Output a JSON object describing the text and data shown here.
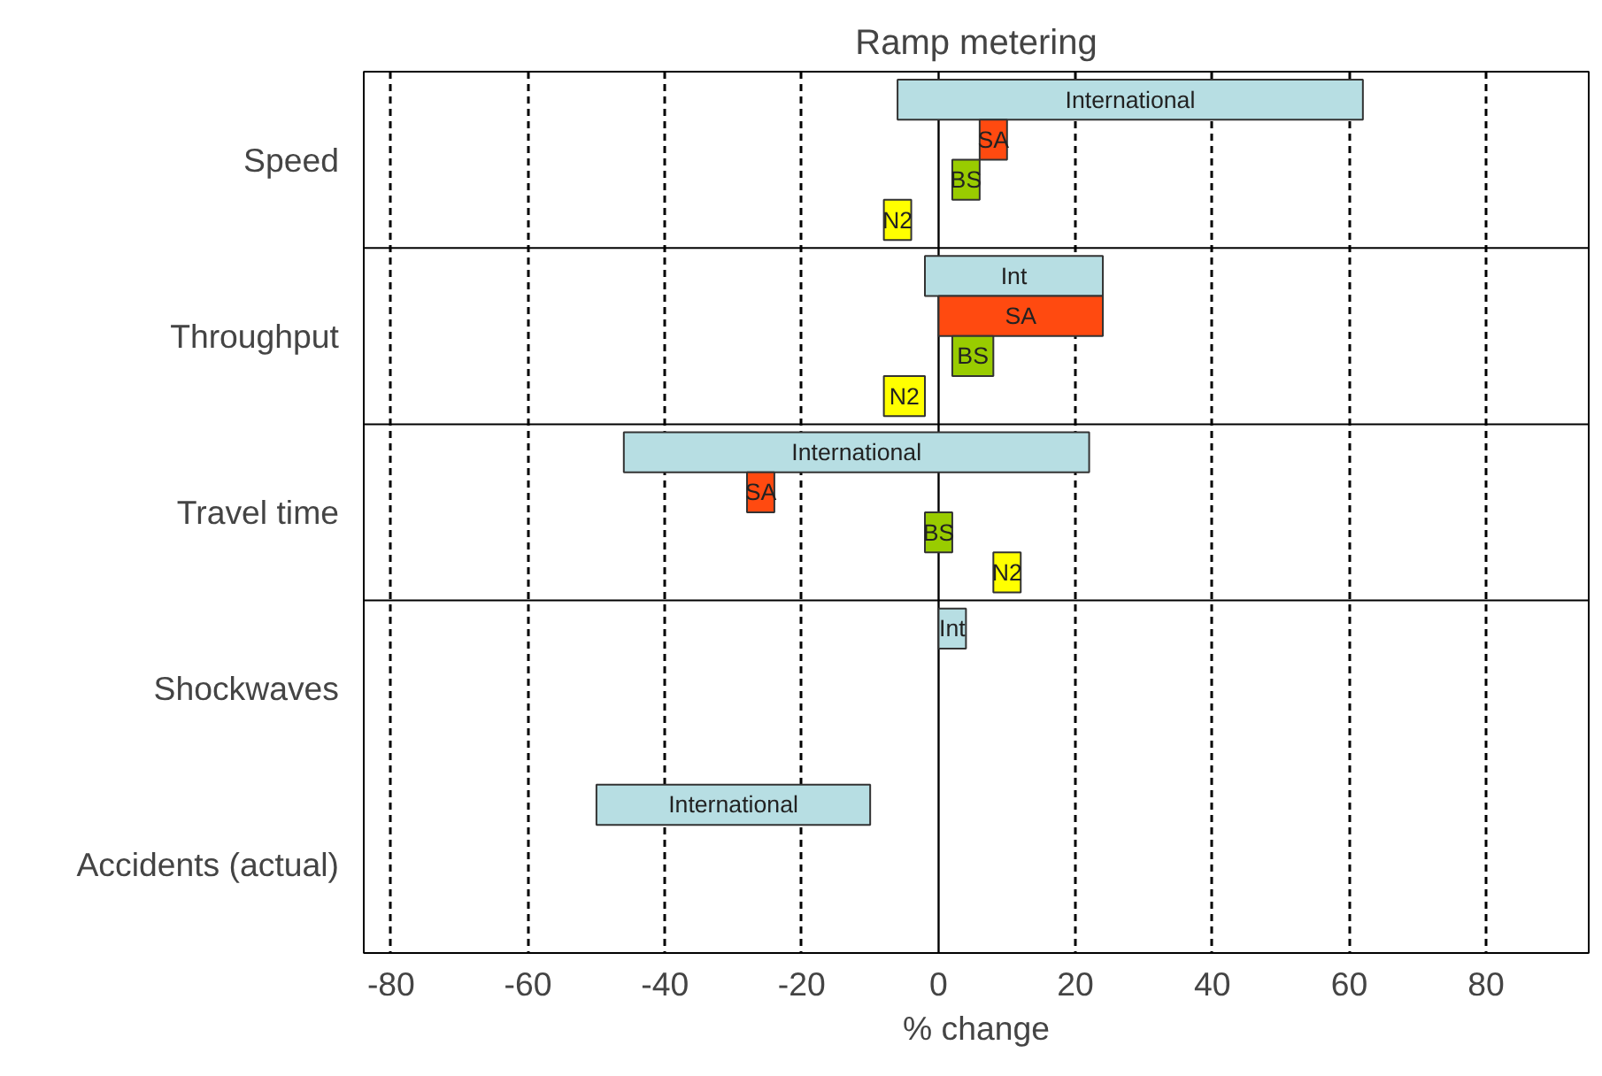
{
  "chart_data": {
    "type": "bar",
    "orientation": "horizontal",
    "title": "Ramp metering",
    "xlabel": "% change",
    "categories": [
      "Speed",
      "Throughput",
      "Travel time",
      "Shockwaves",
      "Accidents (actual)"
    ],
    "series": [
      {
        "color": "#b7dee3",
        "base": [
          -6,
          -2,
          -46,
          0,
          -50
        ],
        "values": [
          68,
          26,
          68,
          4,
          40
        ],
        "value_labels": [
          "International",
          "Int",
          "International",
          "Int",
          "International"
        ]
      },
      {
        "color": "#ff4a10",
        "base": [
          6,
          0,
          -28,
          null,
          null
        ],
        "values": [
          4,
          24,
          4,
          null,
          null
        ],
        "value_labels": [
          "SA",
          "SA",
          "SA",
          null,
          null
        ]
      },
      {
        "color": "#99cc00",
        "base": [
          2,
          2,
          -2,
          null,
          null
        ],
        "values": [
          4,
          6,
          4,
          null,
          null
        ],
        "value_labels": [
          "BS",
          "BS",
          "BS",
          null,
          null
        ]
      },
      {
        "color": "#ffff00",
        "base": [
          -8,
          -8,
          8,
          null,
          null
        ],
        "values": [
          4,
          6,
          4,
          null,
          null
        ],
        "value_labels": [
          "N2",
          "N2",
          "N2",
          null,
          null
        ]
      }
    ],
    "xlim": [
      -84,
      95
    ],
    "xticks": [
      -80,
      -60,
      -40,
      -20,
      0,
      20,
      40,
      60,
      80
    ],
    "ref_lines": [
      {
        "axis": "x",
        "value": 0
      }
    ],
    "grid": "x",
    "line_style": "dashed"
  }
}
